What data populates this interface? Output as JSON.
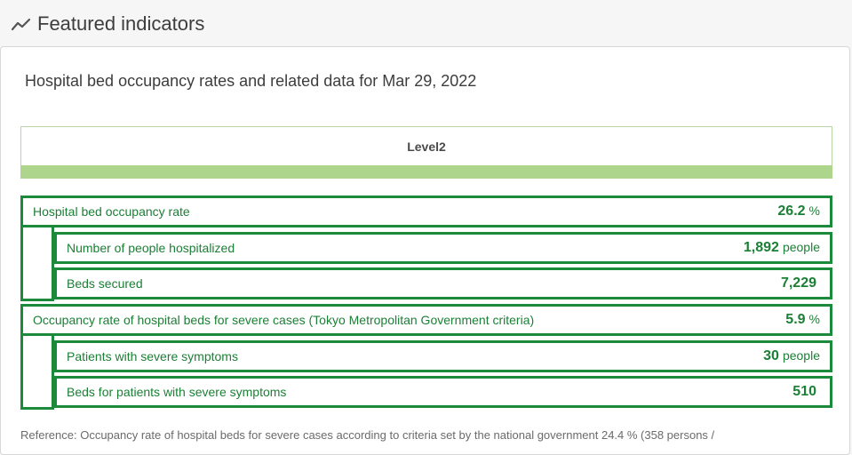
{
  "header": {
    "icon": "trend-line-icon",
    "title": "Featured indicators"
  },
  "card": {
    "title": "Hospital bed occupancy rates and related data for Mar 29, 2022",
    "level_label": "Level2",
    "level_color": "#add58c",
    "accent_color": "#1b8a3a",
    "groups": [
      {
        "main": {
          "label": "Hospital bed occupancy rate",
          "value": "26.2",
          "unit": "%"
        },
        "sub": [
          {
            "label": "Number of people hospitalized",
            "value": "1,892",
            "unit": "people"
          },
          {
            "label": "Beds secured",
            "value": "7,229",
            "unit": ""
          }
        ]
      },
      {
        "main": {
          "label": "Occupancy rate of hospital beds for severe cases (Tokyo Metropolitan Government criteria)",
          "value": "5.9",
          "unit": "%"
        },
        "sub": [
          {
            "label": "Patients with severe symptoms",
            "value": "30",
            "unit": "people"
          },
          {
            "label": "Beds for patients with severe symptoms",
            "value": "510",
            "unit": ""
          }
        ]
      }
    ],
    "reference": "Reference: Occupancy rate of hospital beds for severe cases according to criteria set by the national government 24.4 % (358 persons /"
  }
}
